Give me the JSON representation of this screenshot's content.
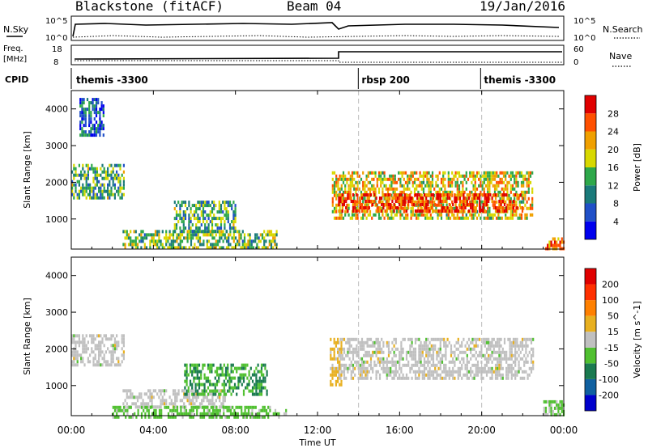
{
  "header": {
    "station": "Blackstone (fitACF)",
    "beam": "Beam 04",
    "date": "19/Jan/2016"
  },
  "top_panels": {
    "nsky_label": "N.Sky",
    "nsearch_label": "N.Search",
    "sky_ticks": [
      "10^5",
      "10^0"
    ],
    "sky_ticks_right": [
      "10^5",
      "10^0"
    ],
    "freq_label": "Freq.",
    "freq_unit": "[MHz]",
    "freq_ticks": [
      "18",
      "8"
    ],
    "nave_label": "Nave",
    "nave_ticks": [
      "60",
      "0"
    ],
    "cpid_label": "CPID",
    "cpid_segments": [
      {
        "label": "themis -3300",
        "start_hour": 0
      },
      {
        "label": "rbsp 200",
        "start_hour": 14
      },
      {
        "label": "themis -3300",
        "start_hour": 20
      }
    ]
  },
  "chart_data": [
    {
      "type": "heatmap",
      "title": "",
      "xlabel": "Time UT",
      "ylabel": "Slant Range [km]",
      "xlim": [
        0,
        24
      ],
      "ylim": [
        180,
        4500
      ],
      "xticks": [
        "00:00",
        "04:00",
        "08:00",
        "12:00",
        "16:00",
        "20:00",
        "00:00"
      ],
      "yticks": [
        "1000",
        "2000",
        "3000",
        "4000"
      ],
      "colorbar_label": "Power [dB]",
      "colorbar_ticks": [
        "4",
        "8",
        "12",
        "16",
        "20",
        "24",
        "28"
      ],
      "colorbar_range": [
        0,
        30
      ],
      "colors": [
        "#0000ee",
        "#2050c8",
        "#1a7a7a",
        "#2ea84a",
        "#d8d800",
        "#f0a000",
        "#ff5000",
        "#e00000"
      ],
      "regions": [
        {
          "x": [
            0.0,
            2.6
          ],
          "y": [
            1600,
            2500
          ],
          "v": 12
        },
        {
          "x": [
            0.4,
            1.6
          ],
          "y": [
            3300,
            4300
          ],
          "v": 8
        },
        {
          "x": [
            2.5,
            10.0
          ],
          "y": [
            200,
            700
          ],
          "v": 14
        },
        {
          "x": [
            5.0,
            8.0
          ],
          "y": [
            700,
            1500
          ],
          "v": 12
        },
        {
          "x": [
            12.7,
            22.5
          ],
          "y": [
            1050,
            2300
          ],
          "v": 18
        },
        {
          "x": [
            13.0,
            22.0
          ],
          "y": [
            1200,
            1700
          ],
          "v": 26
        },
        {
          "x": [
            23.0,
            24.0
          ],
          "y": [
            200,
            500
          ],
          "v": 22
        }
      ]
    },
    {
      "type": "heatmap",
      "title": "",
      "xlabel": "Time UT",
      "ylabel": "Slant Range [km]",
      "xlim": [
        0,
        24
      ],
      "ylim": [
        180,
        4500
      ],
      "xticks": [
        "00:00",
        "04:00",
        "08:00",
        "12:00",
        "16:00",
        "20:00",
        "00:00"
      ],
      "yticks": [
        "1000",
        "2000",
        "3000",
        "4000"
      ],
      "colorbar_label": "Velocity [m s^-1]",
      "colorbar_ticks": [
        "200",
        "100",
        "50",
        "15",
        "-15",
        "-50",
        "-100",
        "-200"
      ],
      "colorbar_range": [
        -250,
        250
      ],
      "colors": [
        "#0000cc",
        "#1060a0",
        "#1a7a50",
        "#50c030",
        "#c0c0c0",
        "#e8b020",
        "#ff8000",
        "#ff3000",
        "#e00000"
      ],
      "regions": [
        {
          "x": [
            0.0,
            2.6
          ],
          "y": [
            1600,
            2400
          ],
          "v": 0
        },
        {
          "x": [
            2.5,
            7.5
          ],
          "y": [
            400,
            900
          ],
          "v": 0
        },
        {
          "x": [
            5.5,
            9.5
          ],
          "y": [
            800,
            1600
          ],
          "v": -80
        },
        {
          "x": [
            2.0,
            10.5
          ],
          "y": [
            180,
            450
          ],
          "v": -50
        },
        {
          "x": [
            13.0,
            22.5
          ],
          "y": [
            1200,
            2300
          ],
          "v": 0
        },
        {
          "x": [
            12.6,
            13.2
          ],
          "y": [
            1000,
            2300
          ],
          "v": 40
        },
        {
          "x": [
            23.0,
            24.0
          ],
          "y": [
            200,
            600
          ],
          "v": -30
        }
      ]
    }
  ]
}
